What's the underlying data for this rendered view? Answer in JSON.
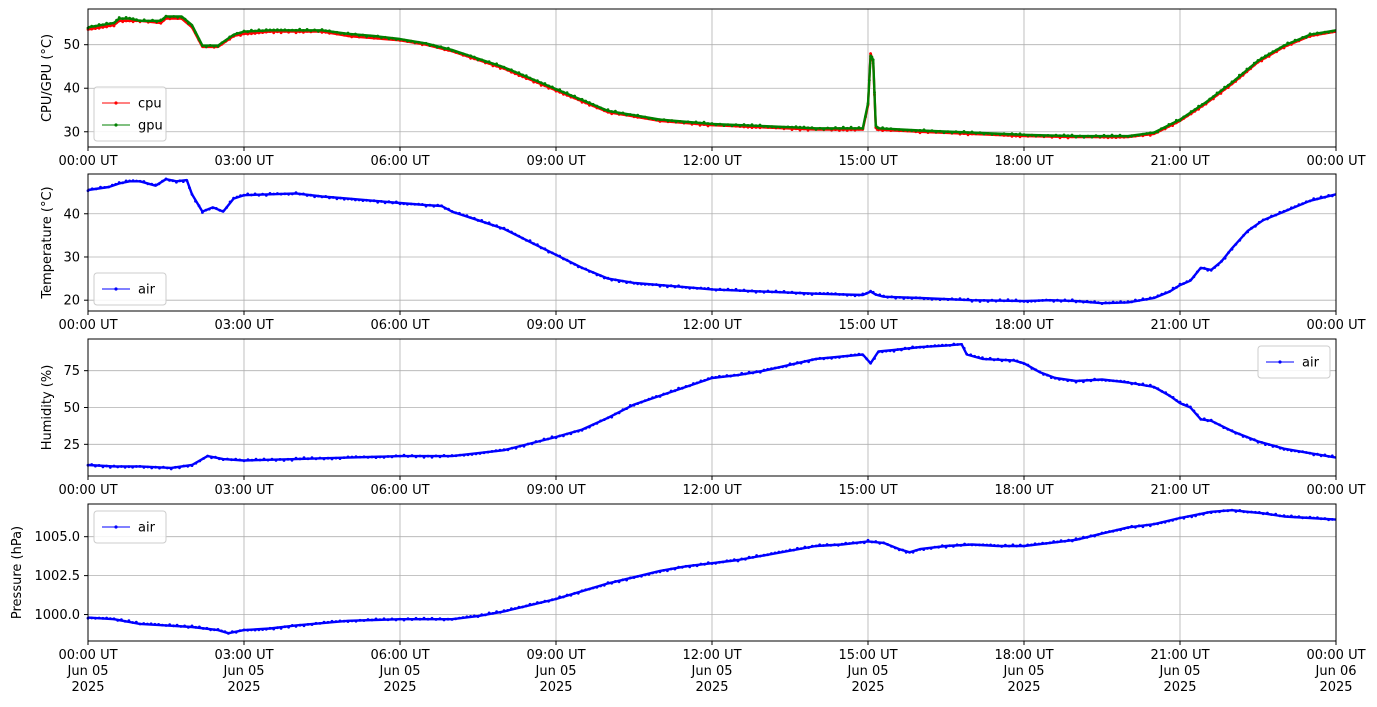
{
  "colors": {
    "cpu": "#ff0000",
    "gpu": "#008000",
    "air": "#0000ff",
    "grid": "#b0b0b0",
    "axes": "#000000"
  },
  "chart_data": [
    {
      "type": "line",
      "ylabel": "CPU/GPU (°C)",
      "ylim": [
        26.5,
        58.2
      ],
      "yticks": [
        30,
        40,
        50
      ],
      "ytick_labels": [
        "30",
        "40",
        "50"
      ],
      "xlim_hours": [
        0,
        24
      ],
      "xticks_hours": [
        0,
        3,
        6,
        9,
        12,
        15,
        18,
        21,
        24
      ],
      "xtick_labels": [
        "00:00 UT",
        "03:00 UT",
        "06:00 UT",
        "09:00 UT",
        "12:00 UT",
        "15:00 UT",
        "18:00 UT",
        "21:00 UT",
        "00:00 UT"
      ],
      "grid": true,
      "legend": "lower-left",
      "series": [
        {
          "name": "cpu",
          "color": "#ff0000",
          "x_hours": [
            0,
            0.5,
            0.6,
            0.8,
            1.0,
            1.4,
            1.5,
            1.8,
            2.0,
            2.2,
            2.5,
            2.8,
            3.0,
            3.5,
            4.0,
            4.5,
            5.0,
            5.5,
            6.0,
            6.5,
            7.0,
            7.5,
            8.0,
            8.5,
            9.0,
            9.5,
            10.0,
            10.5,
            11.0,
            12.0,
            13.0,
            14.0,
            14.9,
            15.0,
            15.05,
            15.1,
            15.15,
            15.2,
            16.0,
            17.0,
            18.0,
            19.0,
            20.0,
            20.5,
            21.0,
            21.5,
            22.0,
            22.5,
            23.0,
            23.5,
            24.0
          ],
          "values": [
            53.5,
            54.5,
            55.5,
            55.5,
            55.5,
            55.0,
            56.0,
            56.0,
            54.0,
            49.5,
            49.5,
            52.0,
            52.5,
            53.0,
            53.0,
            53.0,
            52.0,
            51.5,
            51.0,
            50.0,
            48.5,
            46.5,
            44.5,
            42.0,
            39.5,
            37.0,
            34.5,
            33.5,
            32.5,
            31.5,
            31.0,
            30.5,
            30.5,
            36.0,
            48.0,
            46.0,
            31.0,
            30.5,
            30.0,
            29.5,
            29.0,
            28.8,
            28.8,
            29.5,
            32.5,
            36.5,
            41.0,
            46.0,
            49.5,
            52.0,
            53.0
          ]
        },
        {
          "name": "gpu",
          "color": "#008000",
          "x_hours": [
            0,
            0.5,
            0.6,
            0.8,
            1.0,
            1.4,
            1.5,
            1.8,
            2.0,
            2.2,
            2.5,
            2.8,
            3.0,
            3.5,
            4.0,
            4.5,
            5.0,
            5.5,
            6.0,
            6.5,
            7.0,
            7.5,
            8.0,
            8.5,
            9.0,
            9.5,
            10.0,
            10.5,
            11.0,
            12.0,
            13.0,
            14.0,
            14.9,
            15.0,
            15.05,
            15.1,
            15.15,
            15.2,
            16.0,
            17.0,
            18.0,
            19.0,
            20.0,
            20.5,
            21.0,
            21.5,
            22.0,
            22.5,
            23.0,
            23.5,
            24.0
          ],
          "values": [
            54.0,
            55.0,
            56.0,
            56.0,
            55.5,
            55.5,
            56.5,
            56.5,
            54.5,
            49.8,
            49.8,
            52.3,
            53.0,
            53.3,
            53.3,
            53.3,
            52.5,
            52.0,
            51.3,
            50.3,
            48.8,
            46.8,
            44.8,
            42.3,
            39.8,
            37.3,
            34.8,
            33.8,
            32.8,
            31.8,
            31.3,
            30.8,
            30.8,
            36.5,
            47.5,
            46.5,
            31.3,
            30.8,
            30.3,
            29.8,
            29.3,
            29.0,
            29.0,
            29.8,
            32.8,
            36.8,
            41.3,
            46.3,
            49.8,
            52.3,
            53.3
          ]
        }
      ]
    },
    {
      "type": "line",
      "ylabel": "Temperature (°C)",
      "ylim": [
        17.5,
        49.2
      ],
      "yticks": [
        20,
        30,
        40
      ],
      "ytick_labels": [
        "20",
        "30",
        "40"
      ],
      "xlim_hours": [
        0,
        24
      ],
      "xticks_hours": [
        0,
        3,
        6,
        9,
        12,
        15,
        18,
        21,
        24
      ],
      "xtick_labels": [
        "00:00 UT",
        "03:00 UT",
        "06:00 UT",
        "09:00 UT",
        "12:00 UT",
        "15:00 UT",
        "18:00 UT",
        "21:00 UT",
        "00:00 UT"
      ],
      "grid": true,
      "legend": "lower-left",
      "series": [
        {
          "name": "air",
          "color": "#0000ff",
          "x_hours": [
            0,
            0.4,
            0.6,
            0.8,
            1.0,
            1.3,
            1.5,
            1.7,
            1.9,
            2.0,
            2.2,
            2.4,
            2.6,
            2.8,
            3.0,
            3.5,
            4.0,
            4.5,
            5.0,
            5.5,
            6.0,
            6.5,
            6.8,
            7.0,
            7.5,
            8.0,
            8.5,
            9.0,
            9.5,
            10.0,
            10.5,
            11.0,
            11.5,
            12.0,
            13.0,
            14.0,
            14.9,
            15.05,
            15.15,
            15.3,
            16.0,
            17.0,
            18.0,
            18.5,
            19.0,
            19.5,
            20.0,
            20.5,
            20.8,
            21.0,
            21.2,
            21.4,
            21.6,
            21.8,
            22.0,
            22.3,
            22.6,
            23.0,
            23.5,
            24.0
          ],
          "values": [
            45.5,
            46.2,
            47.0,
            47.5,
            47.5,
            46.5,
            48.0,
            47.5,
            47.8,
            44.5,
            40.5,
            41.5,
            40.5,
            43.5,
            44.3,
            44.5,
            44.7,
            44.0,
            43.5,
            43.0,
            42.5,
            42.0,
            41.8,
            40.5,
            38.5,
            36.5,
            33.5,
            30.5,
            27.5,
            25.0,
            24.0,
            23.5,
            23.0,
            22.5,
            22.0,
            21.5,
            21.2,
            22.0,
            21.3,
            20.8,
            20.5,
            20.0,
            19.8,
            20.0,
            19.8,
            19.3,
            19.5,
            20.5,
            22.0,
            23.5,
            24.5,
            27.5,
            27.0,
            29.0,
            32.0,
            36.0,
            38.5,
            40.5,
            43.0,
            44.5
          ]
        }
      ]
    },
    {
      "type": "line",
      "ylabel": "Humidity (%)",
      "ylim": [
        3.5,
        96.5
      ],
      "yticks": [
        25,
        50,
        75
      ],
      "ytick_labels": [
        "25",
        "50",
        "75"
      ],
      "xlim_hours": [
        0,
        24
      ],
      "xticks_hours": [
        0,
        3,
        6,
        9,
        12,
        15,
        18,
        21,
        24
      ],
      "xtick_labels": [
        "00:00 UT",
        "03:00 UT",
        "06:00 UT",
        "09:00 UT",
        "12:00 UT",
        "15:00 UT",
        "18:00 UT",
        "21:00 UT",
        "00:00 UT"
      ],
      "grid": true,
      "legend": "upper-right",
      "series": [
        {
          "name": "air",
          "color": "#0000ff",
          "x_hours": [
            0,
            0.5,
            1.0,
            1.6,
            2.0,
            2.3,
            2.6,
            3.0,
            4.0,
            5.0,
            6.0,
            7.0,
            8.0,
            9.0,
            9.5,
            10.0,
            10.5,
            11.0,
            11.5,
            12.0,
            12.5,
            13.0,
            13.5,
            14.0,
            14.9,
            15.05,
            15.2,
            15.5,
            16.0,
            16.5,
            16.8,
            16.9,
            17.2,
            17.8,
            18.0,
            18.3,
            18.6,
            19.0,
            19.5,
            20.0,
            20.5,
            20.8,
            21.0,
            21.2,
            21.4,
            21.6,
            22.0,
            22.5,
            23.0,
            23.5,
            24.0
          ],
          "values": [
            11,
            10,
            10,
            9,
            11,
            17,
            15,
            14,
            15,
            16,
            17,
            17,
            21,
            30,
            35,
            43,
            52,
            58,
            64,
            70,
            72,
            75,
            79,
            83,
            86,
            80,
            88,
            89,
            91,
            92,
            93,
            86,
            83,
            82,
            80,
            74,
            70,
            68,
            69,
            67,
            64,
            58,
            53,
            50,
            42,
            41,
            34,
            27,
            22,
            19,
            16
          ]
        }
      ]
    },
    {
      "type": "line",
      "ylabel": "Pressure (hPa)",
      "ylim": [
        998.3,
        1007.1
      ],
      "yticks": [
        1000.0,
        1002.5,
        1005.0
      ],
      "ytick_labels": [
        "1000.0",
        "1002.5",
        "1005.0"
      ],
      "xlim_hours": [
        0,
        24
      ],
      "xticks_hours": [
        0,
        3,
        6,
        9,
        12,
        15,
        18,
        21,
        24
      ],
      "xtick_labels": [
        "00:00 UT\nJun 05\n2025",
        "03:00 UT\nJun 05\n2025",
        "06:00 UT\nJun 05\n2025",
        "09:00 UT\nJun 05\n2025",
        "12:00 UT\nJun 05\n2025",
        "15:00 UT\nJun 05\n2025",
        "18:00 UT\nJun 05\n2025",
        "21:00 UT\nJun 05\n2025",
        "00:00 UT\nJun 06\n2025"
      ],
      "grid": true,
      "legend": "upper-left",
      "series": [
        {
          "name": "air",
          "color": "#0000ff",
          "x_hours": [
            0,
            0.5,
            1.0,
            1.5,
            2.0,
            2.5,
            2.7,
            3.0,
            3.5,
            4.0,
            5.0,
            6.0,
            7.0,
            7.5,
            8.0,
            8.5,
            9.0,
            9.5,
            10.0,
            10.5,
            11.0,
            11.5,
            12.0,
            12.5,
            13.0,
            13.5,
            14.0,
            14.5,
            15.0,
            15.3,
            15.6,
            15.8,
            16.0,
            16.5,
            17.0,
            17.5,
            18.0,
            18.5,
            19.0,
            19.5,
            20.0,
            20.5,
            21.0,
            21.3,
            21.6,
            22.0,
            22.3,
            22.6,
            23.0,
            23.5,
            24.0
          ],
          "values": [
            999.8,
            999.7,
            999.4,
            999.3,
            999.2,
            999.0,
            998.8,
            999.0,
            999.1,
            999.3,
            999.6,
            999.7,
            999.7,
            999.9,
            1000.2,
            1000.6,
            1001.0,
            1001.5,
            1002.0,
            1002.4,
            1002.8,
            1003.1,
            1003.3,
            1003.5,
            1003.8,
            1004.1,
            1004.4,
            1004.5,
            1004.7,
            1004.6,
            1004.2,
            1004.0,
            1004.2,
            1004.4,
            1004.5,
            1004.4,
            1004.4,
            1004.6,
            1004.8,
            1005.2,
            1005.6,
            1005.8,
            1006.2,
            1006.4,
            1006.6,
            1006.7,
            1006.6,
            1006.5,
            1006.3,
            1006.2,
            1006.1
          ]
        }
      ]
    }
  ]
}
